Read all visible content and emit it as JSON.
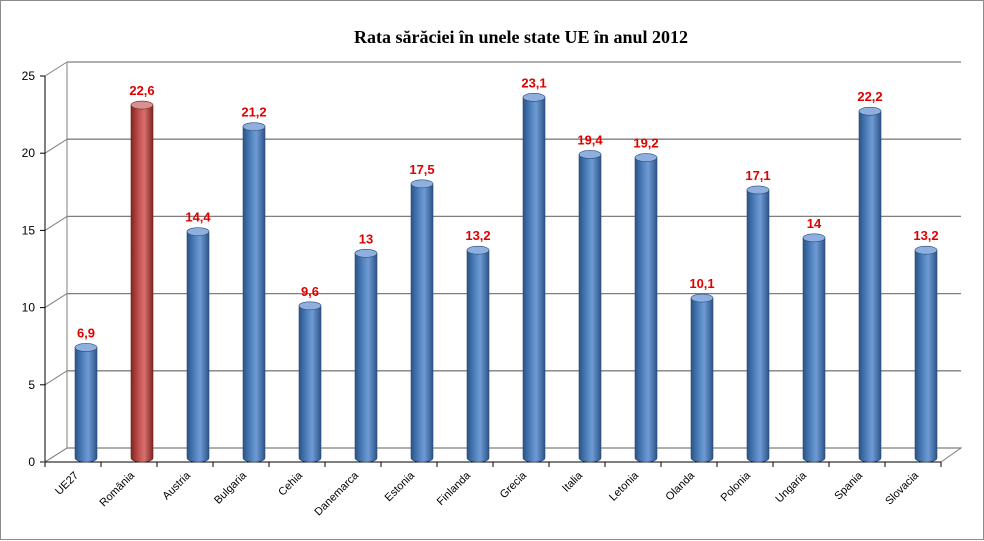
{
  "colors": {
    "bar_default": "#4f81bd",
    "bar_highlight": "#c0504d",
    "data_label": "#e00000",
    "grid": "#7f7f7f"
  },
  "chart_data": {
    "type": "bar",
    "title": "Rata sărăciei în unele state UE în anul 2012",
    "xlabel": "",
    "ylabel": "",
    "ylim": [
      0,
      25
    ],
    "yticks": [
      0,
      5,
      10,
      15,
      20,
      25
    ],
    "grid": true,
    "legend": "none",
    "style": "3d-cylinder",
    "categories": [
      "UE27",
      "România",
      "Austria",
      "Bulgaria",
      "Cehia",
      "Danemarca",
      "Estonia",
      "Finlanda",
      "Grecia",
      "Italia",
      "Letonia",
      "Olanda",
      "Polonia",
      "Ungaria",
      "Spania",
      "Slovacia"
    ],
    "values": [
      6.9,
      22.6,
      14.4,
      21.2,
      9.6,
      13,
      17.5,
      13.2,
      23.1,
      19.4,
      19.2,
      10.1,
      17.1,
      14,
      22.2,
      13.2
    ],
    "data_labels": [
      "6,9",
      "22,6",
      "14,4",
      "21,2",
      "9,6",
      "13",
      "17,5",
      "13,2",
      "23,1",
      "19,4",
      "19,2",
      "10,1",
      "17,1",
      "14",
      "22,2",
      "13,2"
    ],
    "highlight_category": "România"
  }
}
